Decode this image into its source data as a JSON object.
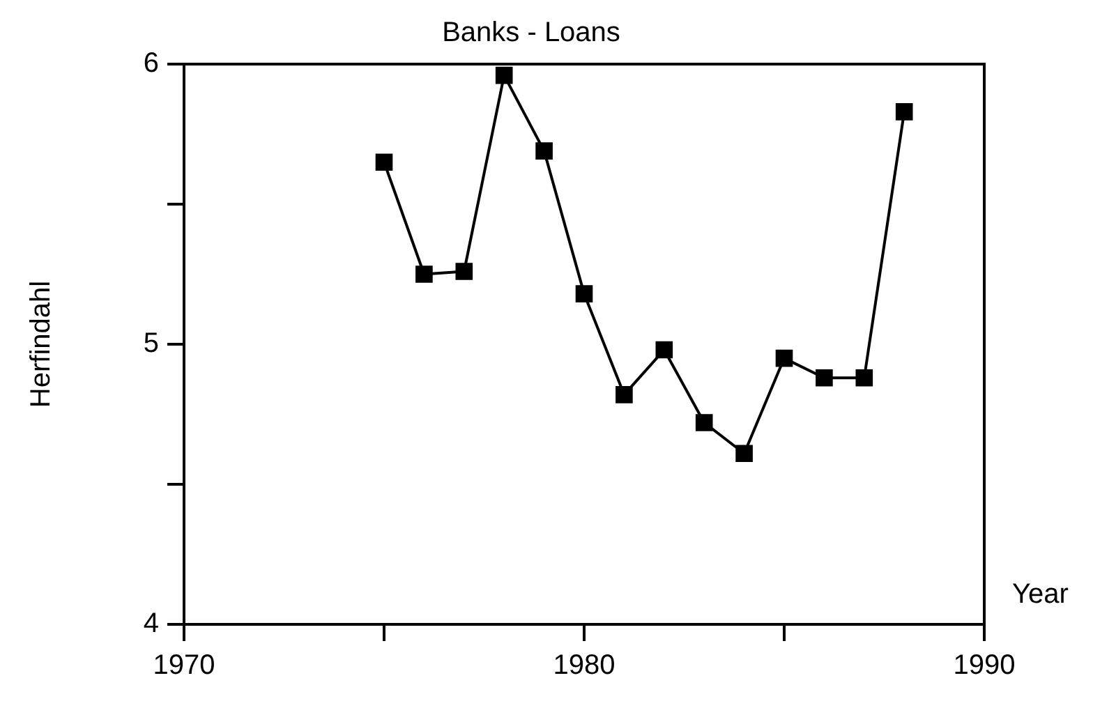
{
  "chart_data": {
    "type": "line",
    "title": "Banks - Loans",
    "xlabel": "Year",
    "ylabel": "Herfindahl",
    "x": [
      1975,
      1976,
      1977,
      1978,
      1979,
      1980,
      1981,
      1982,
      1983,
      1984,
      1985,
      1986,
      1987,
      1988
    ],
    "values": [
      5.65,
      5.25,
      5.26,
      5.96,
      5.69,
      5.18,
      4.82,
      4.98,
      4.72,
      4.61,
      4.95,
      4.88,
      4.88,
      5.83
    ],
    "color": "#000000",
    "marker": "square",
    "xlim": [
      1970,
      1990
    ],
    "xticks": [
      1970,
      {
        "value": 1975,
        "label": null
      },
      1980,
      {
        "value": 1985,
        "label": null
      },
      1990
    ],
    "ylim": [
      4,
      6
    ],
    "yticks": [
      4,
      {
        "value": 4.5,
        "label": null
      },
      5,
      {
        "value": 5.5,
        "label": null
      },
      6
    ]
  }
}
